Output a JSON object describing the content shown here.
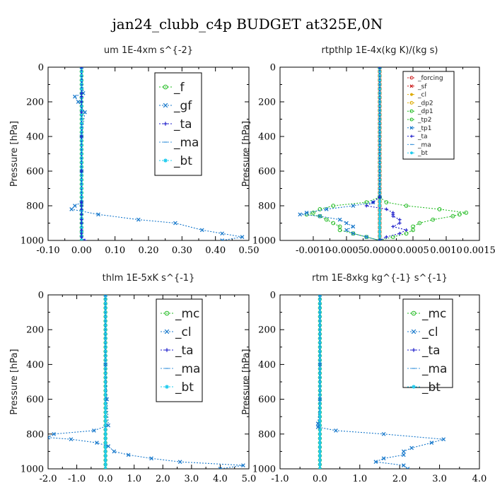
{
  "title": "jan24_clubb_c4p  BUDGET at325E,0N",
  "chart_data": [
    {
      "type": "line",
      "title": "um   1E-4xm s^{-2}",
      "ylabel": "Pressure [hPa]",
      "xlim": [
        -0.1,
        0.5
      ],
      "ylim": [
        1000,
        0
      ],
      "xticks": [
        -0.1,
        0.0,
        0.1,
        0.2,
        0.3,
        0.4,
        0.5
      ],
      "xtick_labels": [
        "-0.10",
        "0.00",
        "0.10",
        "0.20",
        "0.30",
        "0.40",
        "0.50"
      ],
      "yticks": [
        0,
        200,
        400,
        600,
        800,
        1000
      ],
      "ytick_labels": [
        "0",
        "200",
        "400",
        "600",
        "800",
        "1000"
      ],
      "legend": "top-right",
      "y": [
        0,
        150,
        170,
        200,
        260,
        400,
        600,
        780,
        800,
        820,
        850,
        880,
        900,
        940,
        960,
        980,
        1000
      ],
      "series": [
        {
          "name": "_f",
          "color": "#22bb22",
          "marker": "o",
          "values": [
            0,
            0,
            0,
            0,
            0,
            0,
            0,
            0,
            0,
            0,
            0,
            0,
            0,
            0,
            0,
            0,
            0
          ]
        },
        {
          "name": "_gf",
          "color": "#1a7acc",
          "marker": "x",
          "values": [
            0,
            0.005,
            -0.02,
            -0.01,
            0.01,
            0,
            0,
            0,
            -0.02,
            -0.03,
            0.05,
            0.17,
            0.28,
            0.36,
            0.42,
            0.48,
            0.42
          ]
        },
        {
          "name": "_ta",
          "color": "#2222cc",
          "marker": "+",
          "values": [
            0,
            0,
            0,
            0,
            0,
            0,
            0,
            0,
            0,
            0,
            0,
            0,
            0,
            0,
            0,
            0,
            0.01
          ]
        },
        {
          "name": "_ma",
          "color": "#4499dd",
          "marker": "-",
          "values": [
            0,
            0,
            0,
            0,
            0,
            0,
            0,
            0,
            0,
            0,
            0,
            0,
            0,
            0,
            0,
            0,
            0
          ]
        },
        {
          "name": "_bt",
          "color": "#22ccee",
          "marker": "*",
          "values": [
            0,
            0,
            0,
            0,
            0,
            0,
            0,
            0,
            0,
            0,
            0,
            0,
            0,
            0,
            0,
            0,
            0
          ]
        }
      ]
    },
    {
      "type": "line",
      "title": "rtpthlp   1E-4x(kg K)/(kg s)",
      "ylabel": "Pressure [hPa]",
      "xlim": [
        -0.0015,
        0.0015
      ],
      "ylim": [
        1000,
        0
      ],
      "xticks": [
        -0.001,
        -0.0005,
        0,
        0.0005,
        0.001,
        0.0015
      ],
      "xtick_labels": [
        "-0.0010",
        "-0.0005",
        "0.0000",
        "0.0005",
        "0.0010",
        "0.0015"
      ],
      "yticks": [
        0,
        200,
        400,
        600,
        800,
        1000
      ],
      "ytick_labels": [
        "0",
        "200",
        "400",
        "600",
        "800",
        "1000"
      ],
      "legend": "top-right",
      "y": [
        0,
        750,
        780,
        800,
        820,
        840,
        850,
        860,
        880,
        900,
        920,
        940,
        960,
        980,
        1000
      ],
      "series": [
        {
          "name": "_forcing",
          "color": "#cc2222",
          "marker": "o",
          "values": [
            0,
            0,
            0,
            0,
            0,
            0,
            0,
            0,
            0,
            0,
            0,
            0,
            0,
            0,
            0
          ]
        },
        {
          "name": "_sf",
          "color": "#cc2222",
          "marker": "x",
          "values": [
            0,
            0,
            0,
            0,
            0,
            0,
            0,
            0,
            0,
            0,
            0,
            0,
            0,
            0,
            0
          ]
        },
        {
          "name": "_cl",
          "color": "#ddaa00",
          "marker": "*",
          "values": [
            0,
            0,
            0,
            0,
            0,
            0,
            0,
            0,
            0,
            0,
            0,
            0,
            0,
            0,
            0
          ]
        },
        {
          "name": "_dp2",
          "color": "#ddaa00",
          "marker": "o",
          "values": [
            0,
            0,
            0,
            0,
            0,
            0,
            0,
            0,
            0,
            0,
            0,
            0,
            0,
            0,
            0
          ]
        },
        {
          "name": "_dp1",
          "color": "#22bb22",
          "marker": "o",
          "values": [
            0,
            0,
            -0.0002,
            -0.0007,
            -0.0009,
            -0.001,
            -0.0011,
            -0.0009,
            -0.0008,
            -0.0007,
            -0.0006,
            -0.0006,
            -0.0004,
            -0.0002,
            0
          ]
        },
        {
          "name": "_tp2",
          "color": "#22bb22",
          "marker": "o",
          "values": [
            0,
            0,
            0.0001,
            0.0004,
            0.0009,
            0.0013,
            0.0012,
            0.0011,
            0.0008,
            0.0006,
            0.0005,
            0.0005,
            0.0004,
            0.0002,
            0
          ]
        },
        {
          "name": "_tp1",
          "color": "#1a7acc",
          "marker": "x",
          "values": [
            0,
            0,
            -0.0001,
            -0.0004,
            -0.0008,
            -0.0011,
            -0.0012,
            -0.0009,
            -0.0006,
            -0.0005,
            -0.0004,
            -0.0005,
            -0.0004,
            -0.0002,
            0
          ]
        },
        {
          "name": "_ta",
          "color": "#2222cc",
          "marker": "+",
          "values": [
            0,
            0,
            -0.0001,
            -0.0002,
            0.0001,
            0.0002,
            0.0002,
            0.0002,
            0.0003,
            0.0003,
            0.0002,
            0.0004,
            0.0003,
            0.0001,
            0
          ]
        },
        {
          "name": "_ma",
          "color": "#4499dd",
          "marker": "-",
          "values": [
            0,
            0,
            0,
            0,
            0,
            0,
            0,
            0,
            0,
            0,
            0,
            0,
            0,
            0,
            0
          ]
        },
        {
          "name": "_bt",
          "color": "#22ccee",
          "marker": "*",
          "values": [
            0,
            0,
            0,
            0,
            0,
            0,
            0,
            0,
            0,
            0,
            0,
            0,
            0,
            0,
            0
          ]
        }
      ]
    },
    {
      "type": "line",
      "title": "thlm   1E-5xK s^{-1}",
      "ylabel": "Pressure [hPa]",
      "xlim": [
        -2.0,
        5.0
      ],
      "ylim": [
        1000,
        0
      ],
      "xticks": [
        -2,
        -1,
        0,
        1,
        2,
        3,
        4,
        5
      ],
      "xtick_labels": [
        "-2.0",
        "-1.0",
        "0.0",
        "1.0",
        "2.0",
        "3.0",
        "4.0",
        "5.0"
      ],
      "yticks": [
        0,
        200,
        400,
        600,
        800,
        1000
      ],
      "ytick_labels": [
        "0",
        "200",
        "400",
        "600",
        "800",
        "1000"
      ],
      "legend": "top-right",
      "y": [
        0,
        400,
        600,
        750,
        780,
        800,
        820,
        830,
        850,
        870,
        900,
        920,
        940,
        960,
        980,
        1000
      ],
      "series": [
        {
          "name": "_mc",
          "color": "#22bb22",
          "marker": "o",
          "values": [
            0,
            0,
            0,
            0,
            0,
            0,
            0,
            0,
            0,
            0,
            0,
            0,
            0,
            0,
            0,
            0
          ]
        },
        {
          "name": "_cl",
          "color": "#1a7acc",
          "marker": "x",
          "values": [
            0,
            0,
            0.05,
            0.1,
            -0.4,
            -1.8,
            -2.0,
            -1.2,
            -0.3,
            0.1,
            0.3,
            0.8,
            1.6,
            2.6,
            4.8,
            4.0
          ]
        },
        {
          "name": "_ta",
          "color": "#2222cc",
          "marker": "+",
          "values": [
            0,
            0,
            0,
            0,
            0,
            0,
            0,
            0,
            0,
            0,
            0,
            0,
            0,
            0,
            0,
            0
          ]
        },
        {
          "name": "_ma",
          "color": "#4499dd",
          "marker": "-",
          "values": [
            0,
            0,
            0,
            0,
            0,
            0,
            0,
            0,
            0,
            0,
            0,
            0,
            0,
            0,
            0,
            0
          ]
        },
        {
          "name": "_bt",
          "color": "#22ccee",
          "marker": "*",
          "values": [
            0,
            0,
            0,
            0,
            0,
            0,
            0,
            0,
            0,
            0,
            0,
            0,
            0,
            0,
            0,
            0
          ]
        }
      ]
    },
    {
      "type": "line",
      "title": "rtm   1E-8xkg kg^{-1} s^{-1}",
      "ylabel": "Pressure [hPa]",
      "xlim": [
        -1.0,
        4.0
      ],
      "ylim": [
        1000,
        0
      ],
      "xticks": [
        -1,
        0,
        1,
        2,
        3,
        4
      ],
      "xtick_labels": [
        "-1.0",
        "0.0",
        "1.0",
        "2.0",
        "3.0",
        "4.0"
      ],
      "yticks": [
        0,
        200,
        400,
        600,
        800,
        1000
      ],
      "ytick_labels": [
        "0",
        "200",
        "400",
        "600",
        "800",
        "1000"
      ],
      "legend": "top-right",
      "y": [
        0,
        400,
        600,
        740,
        760,
        780,
        800,
        830,
        850,
        880,
        900,
        920,
        940,
        960,
        980,
        1000
      ],
      "series": [
        {
          "name": "_mc",
          "color": "#22bb22",
          "marker": "o",
          "values": [
            0,
            0,
            0,
            0,
            0,
            0,
            0,
            0,
            0,
            0,
            0,
            0,
            0,
            0,
            0,
            0
          ]
        },
        {
          "name": "_cl",
          "color": "#1a7acc",
          "marker": "x",
          "values": [
            0,
            0,
            0,
            -0.05,
            -0.05,
            0.4,
            1.6,
            3.1,
            2.8,
            2.3,
            2.1,
            2.1,
            1.6,
            1.4,
            2.1,
            2.2
          ]
        },
        {
          "name": "_ta",
          "color": "#2222cc",
          "marker": "+",
          "values": [
            0,
            0,
            0,
            0,
            0,
            0,
            0,
            0,
            0,
            0,
            0,
            0,
            0,
            0,
            0,
            0
          ]
        },
        {
          "name": "_ma",
          "color": "#4499dd",
          "marker": "-",
          "values": [
            0,
            0,
            0,
            0,
            0,
            0,
            0,
            0,
            0,
            0,
            0,
            0,
            0,
            0,
            0,
            0
          ]
        },
        {
          "name": "_bt",
          "color": "#22ccee",
          "marker": "*",
          "values": [
            0,
            0,
            0,
            0,
            0,
            0,
            0,
            0,
            0,
            0,
            0,
            0,
            0,
            0,
            0,
            0
          ]
        }
      ]
    }
  ]
}
